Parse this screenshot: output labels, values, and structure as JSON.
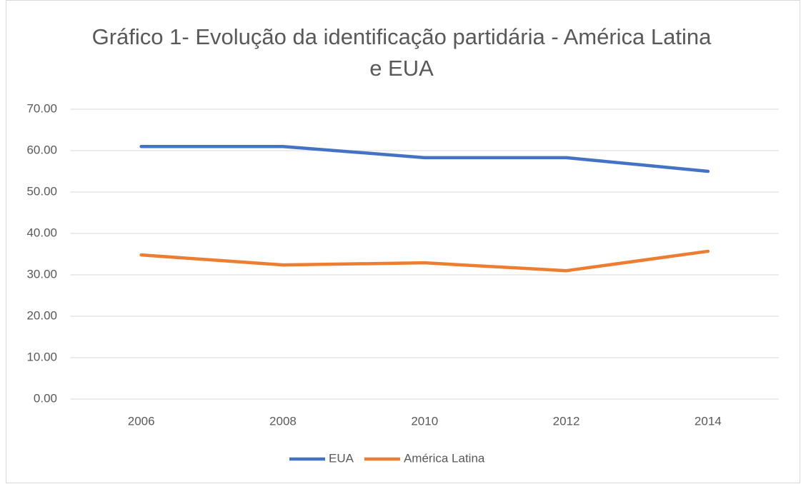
{
  "chart_data": {
    "type": "line",
    "title": "Gráfico 1- Evolução da identificação partidária - América Latina e EUA",
    "categories": [
      "2006",
      "2008",
      "2010",
      "2012",
      "2014"
    ],
    "series": [
      {
        "name": "EUA",
        "color": "#4472c4",
        "values": [
          61.0,
          61.0,
          58.3,
          58.3,
          55.0
        ]
      },
      {
        "name": "América Latina",
        "color": "#ed7d31",
        "values": [
          34.8,
          32.4,
          32.9,
          31.0,
          35.7
        ]
      }
    ],
    "ylim": [
      0,
      70
    ],
    "yticks": [
      {
        "value": 0,
        "label": "0.00"
      },
      {
        "value": 10,
        "label": "10.00"
      },
      {
        "value": 20,
        "label": "20.00"
      },
      {
        "value": 30,
        "label": "30.00"
      },
      {
        "value": 40,
        "label": "40.00"
      },
      {
        "value": 50,
        "label": "50.00"
      },
      {
        "value": 60,
        "label": "60.00"
      },
      {
        "value": 70,
        "label": "70.00"
      }
    ],
    "grid": true,
    "legend": "bottom"
  }
}
